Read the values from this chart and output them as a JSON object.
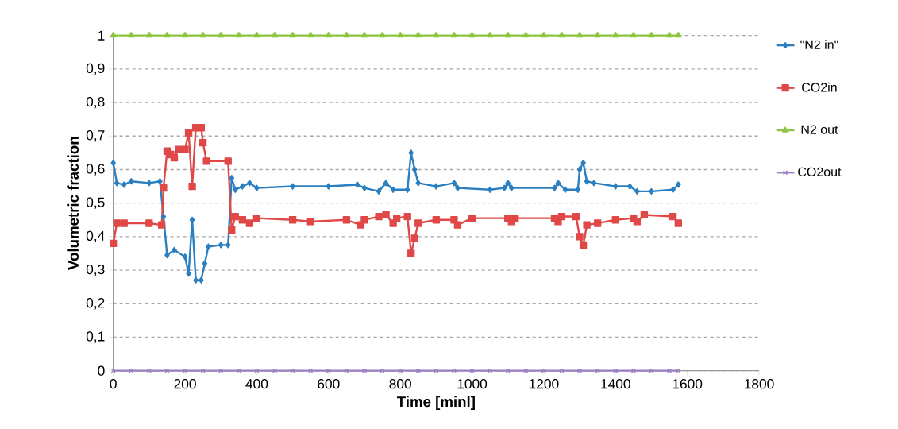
{
  "chart_data": {
    "type": "line",
    "xlabel": "Time [minl]",
    "ylabel": "Volumetric fraction",
    "xlim": [
      0,
      1800
    ],
    "xticks": [
      0,
      200,
      400,
      600,
      800,
      1000,
      1200,
      1400,
      1600,
      1800
    ],
    "ylim": [
      0,
      1
    ],
    "yticks": [
      {
        "value": 0,
        "label": "0"
      },
      {
        "value": 0.1,
        "label": "0,1"
      },
      {
        "value": 0.2,
        "label": "0,2"
      },
      {
        "value": 0.3,
        "label": "0,3"
      },
      {
        "value": 0.4,
        "label": "0,4"
      },
      {
        "value": 0.5,
        "label": "0,5"
      },
      {
        "value": 0.6,
        "label": "0,6"
      },
      {
        "value": 0.7,
        "label": "0,7"
      },
      {
        "value": 0.8,
        "label": "0,8"
      },
      {
        "value": 0.9,
        "label": "0,9"
      },
      {
        "value": 1,
        "label": "1"
      }
    ],
    "grid": "y",
    "legend": "right",
    "series": [
      {
        "name": "\"N2 in\"",
        "color": "#2a7fc0",
        "marker": "diamond",
        "x": [
          0,
          10,
          30,
          50,
          100,
          130,
          140,
          150,
          170,
          200,
          210,
          220,
          230,
          245,
          255,
          265,
          300,
          320,
          330,
          340,
          360,
          380,
          400,
          500,
          600,
          680,
          700,
          740,
          760,
          780,
          820,
          830,
          840,
          850,
          900,
          950,
          960,
          1050,
          1090,
          1100,
          1110,
          1230,
          1240,
          1260,
          1295,
          1300,
          1310,
          1320,
          1340,
          1400,
          1440,
          1460,
          1500,
          1560,
          1575
        ],
        "values": [
          0.62,
          0.56,
          0.555,
          0.565,
          0.56,
          0.565,
          0.46,
          0.345,
          0.36,
          0.34,
          0.29,
          0.45,
          0.27,
          0.27,
          0.32,
          0.37,
          0.375,
          0.375,
          0.575,
          0.54,
          0.55,
          0.56,
          0.545,
          0.55,
          0.55,
          0.555,
          0.545,
          0.535,
          0.56,
          0.54,
          0.54,
          0.65,
          0.6,
          0.56,
          0.55,
          0.56,
          0.545,
          0.54,
          0.545,
          0.56,
          0.545,
          0.545,
          0.56,
          0.54,
          0.54,
          0.6,
          0.62,
          0.565,
          0.56,
          0.55,
          0.55,
          0.535,
          0.535,
          0.54,
          0.555
        ]
      },
      {
        "name": "CO2in",
        "color": "#e04848",
        "marker": "square",
        "x": [
          0,
          10,
          30,
          100,
          135,
          140,
          150,
          160,
          170,
          182,
          200,
          210,
          220,
          230,
          245,
          250,
          260,
          320,
          330,
          340,
          360,
          380,
          400,
          500,
          550,
          650,
          690,
          700,
          740,
          760,
          780,
          790,
          820,
          830,
          840,
          850,
          900,
          950,
          960,
          1000,
          1100,
          1110,
          1120,
          1230,
          1240,
          1250,
          1290,
          1300,
          1310,
          1320,
          1350,
          1400,
          1450,
          1460,
          1480,
          1560,
          1575
        ],
        "values": [
          0.38,
          0.44,
          0.44,
          0.44,
          0.435,
          0.545,
          0.655,
          0.645,
          0.635,
          0.66,
          0.66,
          0.71,
          0.55,
          0.725,
          0.725,
          0.68,
          0.625,
          0.625,
          0.42,
          0.46,
          0.45,
          0.44,
          0.455,
          0.45,
          0.445,
          0.45,
          0.435,
          0.45,
          0.46,
          0.465,
          0.44,
          0.455,
          0.46,
          0.35,
          0.395,
          0.44,
          0.45,
          0.45,
          0.435,
          0.455,
          0.455,
          0.445,
          0.455,
          0.455,
          0.445,
          0.46,
          0.46,
          0.4,
          0.375,
          0.435,
          0.44,
          0.45,
          0.455,
          0.445,
          0.465,
          0.46,
          0.44
        ]
      },
      {
        "name": "N2 out",
        "color": "#8cc63f",
        "marker": "triangle",
        "x": [
          0,
          50,
          100,
          150,
          200,
          250,
          300,
          350,
          400,
          450,
          500,
          550,
          600,
          650,
          700,
          750,
          800,
          850,
          900,
          950,
          1000,
          1050,
          1100,
          1150,
          1200,
          1250,
          1300,
          1350,
          1400,
          1450,
          1500,
          1550,
          1575
        ],
        "values": [
          1,
          1,
          1,
          1,
          1,
          1,
          1,
          1,
          1,
          1,
          1,
          1,
          1,
          1,
          1,
          1,
          1,
          1,
          1,
          1,
          1,
          1,
          1,
          1,
          1,
          1,
          1,
          1,
          1,
          1,
          1,
          1,
          1
        ]
      },
      {
        "name": "CO2out",
        "color": "#9b7fc0",
        "marker": "cross",
        "x": [
          0,
          50,
          100,
          150,
          200,
          250,
          300,
          350,
          400,
          450,
          500,
          550,
          600,
          650,
          700,
          750,
          800,
          850,
          900,
          950,
          1000,
          1050,
          1100,
          1150,
          1200,
          1250,
          1300,
          1350,
          1400,
          1450,
          1500,
          1550,
          1575
        ],
        "values": [
          0,
          0,
          0,
          0,
          0,
          0,
          0,
          0,
          0,
          0,
          0,
          0,
          0,
          0,
          0,
          0,
          0,
          0,
          0,
          0,
          0,
          0,
          0,
          0,
          0,
          0,
          0,
          0,
          0,
          0,
          0,
          0,
          0
        ]
      }
    ]
  }
}
